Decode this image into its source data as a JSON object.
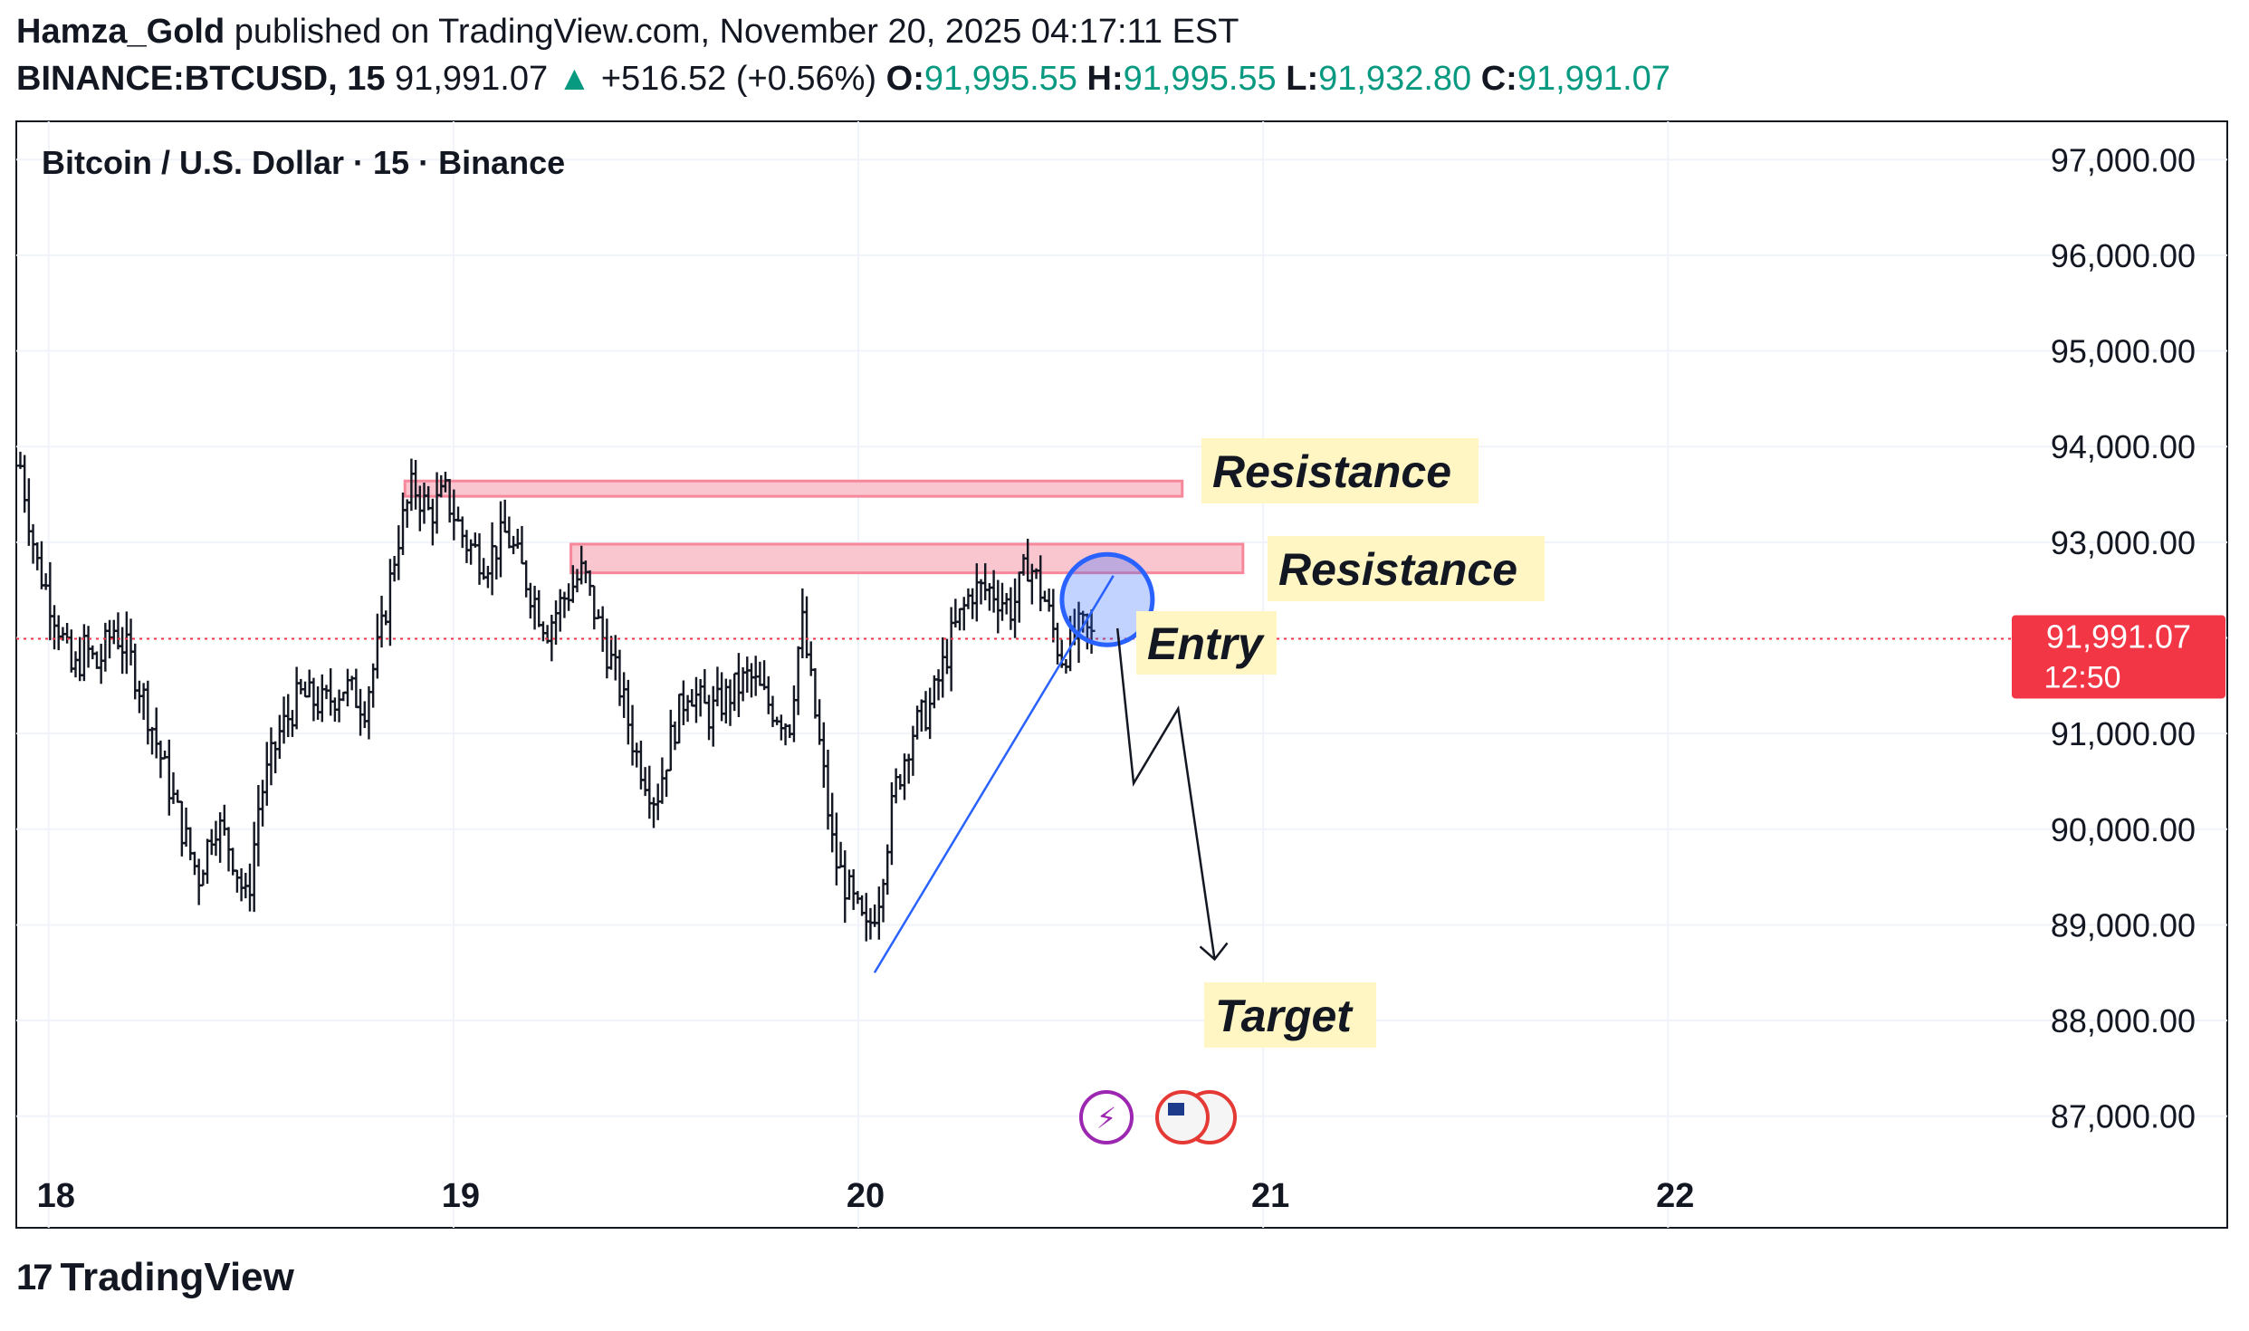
{
  "header": {
    "author": "Hamza_Gold",
    "published_text": "published on TradingView.com, November 20, 2025 04:17:11 EST",
    "symbol": "BINANCE:BTCUSD, 15",
    "last": "91,991.07",
    "change_arrow": "▲",
    "change": "+516.52 (+0.56%)",
    "o_label": "O:",
    "o": "91,995.55",
    "h_label": "H:",
    "h": "91,995.55",
    "l_label": "L:",
    "l": "91,932.80",
    "c_label": "C:",
    "c": "91,991.07"
  },
  "colors": {
    "up": "#089981",
    "price_line": "#f23645",
    "resistance_fill": "#f9c6cf",
    "resistance_border": "#f7889c",
    "label_bg": "#fff6c4",
    "trendline": "#2962ff"
  },
  "footer": {
    "brand": "TradingView",
    "logo_icon": "tradingview-logo-icon"
  },
  "chart_data": {
    "type": "candlestick",
    "title": "Bitcoin / U.S. Dollar · 15 · Binance",
    "x_ticks": [
      "18",
      "19",
      "20",
      "21",
      "22"
    ],
    "x_tick_values": [
      18,
      19,
      20,
      21,
      22
    ],
    "y_ticks": [
      "97,000.00",
      "96,000.00",
      "95,000.00",
      "94,000.00",
      "93,000.00",
      "92,000.00",
      "91,000.00",
      "90,000.00",
      "89,000.00",
      "88,000.00",
      "87,000.00"
    ],
    "ylim": [
      86600,
      97400
    ],
    "xlim": [
      17.92,
      22.8
    ],
    "current_price": 91991.07,
    "current_price_label": "91,991.07",
    "countdown": "12:50",
    "price_path": [
      [
        17.93,
        93800
      ],
      [
        17.97,
        92800
      ],
      [
        18.02,
        92200
      ],
      [
        18.06,
        91600
      ],
      [
        18.09,
        91900
      ],
      [
        18.12,
        91700
      ],
      [
        18.16,
        92100
      ],
      [
        18.2,
        91800
      ],
      [
        18.24,
        91300
      ],
      [
        18.28,
        90700
      ],
      [
        18.33,
        90000
      ],
      [
        18.37,
        89500
      ],
      [
        18.41,
        90100
      ],
      [
        18.45,
        89800
      ],
      [
        18.49,
        89200
      ],
      [
        18.52,
        90300
      ],
      [
        18.57,
        91000
      ],
      [
        18.62,
        91400
      ],
      [
        18.68,
        91300
      ],
      [
        18.73,
        91500
      ],
      [
        18.78,
        91300
      ],
      [
        18.82,
        92000
      ],
      [
        18.86,
        93000
      ],
      [
        18.9,
        93600
      ],
      [
        18.94,
        93300
      ],
      [
        18.98,
        93500
      ],
      [
        19.03,
        93000
      ],
      [
        19.08,
        92800
      ],
      [
        19.13,
        93100
      ],
      [
        19.18,
        92600
      ],
      [
        19.23,
        92100
      ],
      [
        19.27,
        92400
      ],
      [
        19.32,
        92700
      ],
      [
        19.36,
        92100
      ],
      [
        19.41,
        91500
      ],
      [
        19.45,
        90800
      ],
      [
        19.5,
        90300
      ],
      [
        19.54,
        91000
      ],
      [
        19.58,
        91500
      ],
      [
        19.63,
        91200
      ],
      [
        19.68,
        91400
      ],
      [
        19.73,
        91600
      ],
      [
        19.78,
        91300
      ],
      [
        19.83,
        91100
      ],
      [
        19.86,
        92200
      ],
      [
        19.91,
        90700
      ],
      [
        19.94,
        89700
      ],
      [
        19.98,
        89300
      ],
      [
        20.02,
        88900
      ],
      [
        20.05,
        89300
      ],
      [
        20.09,
        90400
      ],
      [
        20.13,
        91000
      ],
      [
        20.18,
        91300
      ],
      [
        20.23,
        92000
      ],
      [
        20.28,
        92500
      ],
      [
        20.33,
        92500
      ],
      [
        20.38,
        92300
      ],
      [
        20.42,
        92800
      ],
      [
        20.46,
        92400
      ],
      [
        20.5,
        91800
      ],
      [
        20.55,
        92100
      ],
      [
        20.58,
        91990
      ]
    ],
    "ohlc_last": {
      "o": 91995.55,
      "h": 91995.55,
      "l": 91932.8,
      "c": 91991.07
    },
    "annotations": {
      "resistance_1": {
        "label": "Resistance",
        "x_from": 18.88,
        "x_to": 20.8,
        "y_low": 93480,
        "y_high": 93640
      },
      "resistance_2": {
        "label": "Resistance",
        "x_from": 19.29,
        "x_to": 20.95,
        "y_low": 92680,
        "y_high": 92980
      },
      "entry": {
        "label": "Entry",
        "x": 20.57,
        "y": 92250
      },
      "target": {
        "label": "Target",
        "x": 20.9,
        "y": 88100
      },
      "trendline": {
        "from": [
          20.04,
          88500
        ],
        "to": [
          20.63,
          92650
        ]
      },
      "projection": [
        [
          20.64,
          92100
        ],
        [
          20.68,
          90480
        ],
        [
          20.79,
          91260
        ],
        [
          20.88,
          88640
        ]
      ]
    }
  }
}
